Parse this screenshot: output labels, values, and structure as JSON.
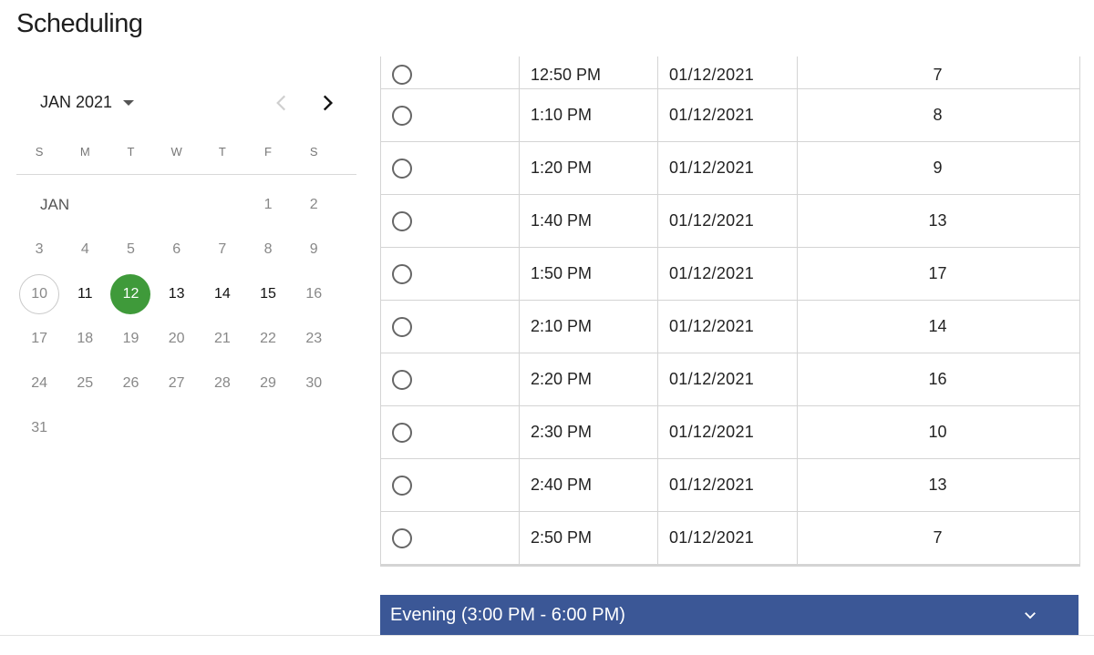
{
  "page": {
    "title": "Scheduling"
  },
  "colors": {
    "selected_day": "#3f9a3a",
    "accordion_bg": "#3b5796"
  },
  "calendar": {
    "month_label": "JAN 2021",
    "inline_month": "JAN",
    "prev_icon": "chevron-left-icon",
    "next_icon": "chevron-right-icon",
    "weekdays": [
      "S",
      "M",
      "T",
      "W",
      "T",
      "F",
      "S"
    ],
    "days": [
      {
        "n": "1",
        "state": "disabled"
      },
      {
        "n": "2",
        "state": "disabled"
      },
      {
        "n": "3",
        "state": "disabled"
      },
      {
        "n": "4",
        "state": "disabled"
      },
      {
        "n": "5",
        "state": "disabled"
      },
      {
        "n": "6",
        "state": "disabled"
      },
      {
        "n": "7",
        "state": "disabled"
      },
      {
        "n": "8",
        "state": "disabled"
      },
      {
        "n": "9",
        "state": "disabled"
      },
      {
        "n": "10",
        "state": "today"
      },
      {
        "n": "11",
        "state": "enabled"
      },
      {
        "n": "12",
        "state": "selected"
      },
      {
        "n": "13",
        "state": "enabled"
      },
      {
        "n": "14",
        "state": "enabled"
      },
      {
        "n": "15",
        "state": "enabled"
      },
      {
        "n": "16",
        "state": "disabled"
      },
      {
        "n": "17",
        "state": "disabled"
      },
      {
        "n": "18",
        "state": "disabled"
      },
      {
        "n": "19",
        "state": "disabled"
      },
      {
        "n": "20",
        "state": "disabled"
      },
      {
        "n": "21",
        "state": "disabled"
      },
      {
        "n": "22",
        "state": "disabled"
      },
      {
        "n": "23",
        "state": "disabled"
      },
      {
        "n": "24",
        "state": "disabled"
      },
      {
        "n": "25",
        "state": "disabled"
      },
      {
        "n": "26",
        "state": "disabled"
      },
      {
        "n": "27",
        "state": "disabled"
      },
      {
        "n": "28",
        "state": "disabled"
      },
      {
        "n": "29",
        "state": "disabled"
      },
      {
        "n": "30",
        "state": "disabled"
      },
      {
        "n": "31",
        "state": "disabled"
      }
    ]
  },
  "slots": [
    {
      "time": "12:50 PM",
      "date": "01/12/2021",
      "count": "7"
    },
    {
      "time": "1:10 PM",
      "date": "01/12/2021",
      "count": "8"
    },
    {
      "time": "1:20 PM",
      "date": "01/12/2021",
      "count": "9"
    },
    {
      "time": "1:40 PM",
      "date": "01/12/2021",
      "count": "13"
    },
    {
      "time": "1:50 PM",
      "date": "01/12/2021",
      "count": "17"
    },
    {
      "time": "2:10 PM",
      "date": "01/12/2021",
      "count": "14"
    },
    {
      "time": "2:20 PM",
      "date": "01/12/2021",
      "count": "16"
    },
    {
      "time": "2:30 PM",
      "date": "01/12/2021",
      "count": "10"
    },
    {
      "time": "2:40 PM",
      "date": "01/12/2021",
      "count": "13"
    },
    {
      "time": "2:50 PM",
      "date": "01/12/2021",
      "count": "7"
    }
  ],
  "accordion": {
    "label": "Evening (3:00 PM - 6:00 PM)",
    "icon": "chevron-down-icon"
  }
}
